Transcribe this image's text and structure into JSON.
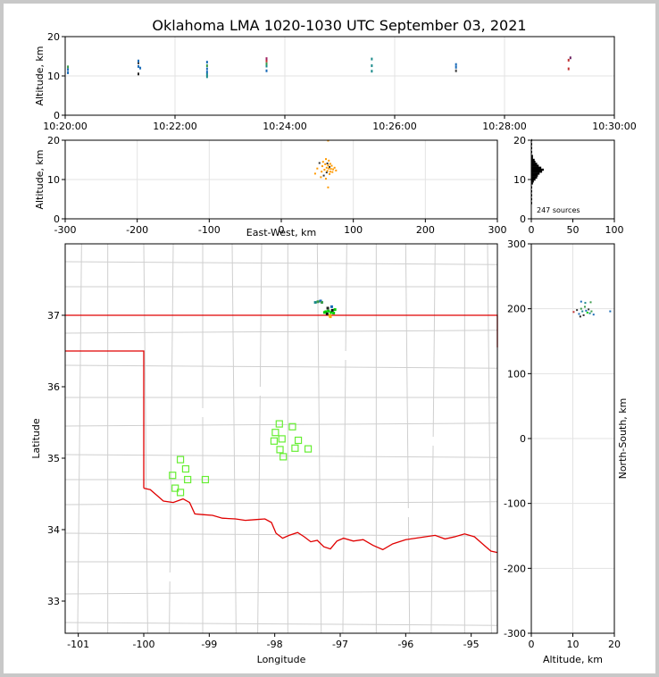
{
  "chart_data": [
    {
      "id": "time_altitude",
      "type": "scatter",
      "title": "Oklahoma LMA 1020-1030 UTC September 03, 2021",
      "xlabel": "",
      "ylabel": "Altitude, km",
      "xlim": [
        "10:20:00",
        "10:30:00"
      ],
      "ylim": [
        0,
        20
      ],
      "xticks": [
        "10:20:00",
        "10:22:00",
        "10:24:00",
        "10:26:00",
        "10:28:00",
        "10:30:00"
      ],
      "yticks": [
        0,
        10,
        20
      ],
      "grid": true,
      "points": [
        {
          "t": "10:20:03",
          "alt": 10.8,
          "color": "#1a6bb8"
        },
        {
          "t": "10:20:03",
          "alt": 11.6,
          "color": "#1a6bb8"
        },
        {
          "t": "10:20:03",
          "alt": 12.3,
          "color": "#3a9a4a"
        },
        {
          "t": "10:21:20",
          "alt": 10.5,
          "color": "#222222"
        },
        {
          "t": "10:21:20",
          "alt": 12.4,
          "color": "#1a6bb8"
        },
        {
          "t": "10:21:20",
          "alt": 13.3,
          "color": "#444444"
        },
        {
          "t": "10:21:20",
          "alt": 13.8,
          "color": "#1a6bb8"
        },
        {
          "t": "10:21:22",
          "alt": 12.0,
          "color": "#1a6bb8"
        },
        {
          "t": "10:22:35",
          "alt": 9.8,
          "color": "#1a8a8a"
        },
        {
          "t": "10:22:35",
          "alt": 10.4,
          "color": "#1a8a8a"
        },
        {
          "t": "10:22:35",
          "alt": 11.0,
          "color": "#1a6bb8"
        },
        {
          "t": "10:22:35",
          "alt": 11.8,
          "color": "#1a6bb8"
        },
        {
          "t": "10:22:35",
          "alt": 12.6,
          "color": "#3a9a4a"
        },
        {
          "t": "10:22:35",
          "alt": 13.5,
          "color": "#1a6bb8"
        },
        {
          "t": "10:23:40",
          "alt": 11.3,
          "color": "#1a6bb8"
        },
        {
          "t": "10:23:40",
          "alt": 12.5,
          "color": "#1a8a8a"
        },
        {
          "t": "10:23:40",
          "alt": 13.1,
          "color": "#3a9a4a"
        },
        {
          "t": "10:23:40",
          "alt": 13.8,
          "color": "#c03030"
        },
        {
          "t": "10:23:40",
          "alt": 14.4,
          "color": "#a02060"
        },
        {
          "t": "10:25:35",
          "alt": 11.2,
          "color": "#1a8a8a"
        },
        {
          "t": "10:25:35",
          "alt": 12.6,
          "color": "#1a8a8a"
        },
        {
          "t": "10:25:35",
          "alt": 14.3,
          "color": "#1a8a8a"
        },
        {
          "t": "10:27:07",
          "alt": 11.3,
          "color": "#444444"
        },
        {
          "t": "10:27:07",
          "alt": 12.2,
          "color": "#1a6bb8"
        },
        {
          "t": "10:27:07",
          "alt": 12.9,
          "color": "#1a6bb8"
        },
        {
          "t": "10:29:10",
          "alt": 11.8,
          "color": "#c03030"
        },
        {
          "t": "10:29:10",
          "alt": 14.0,
          "color": "#c03030"
        },
        {
          "t": "10:29:12",
          "alt": 14.6,
          "color": "#6a2060"
        }
      ]
    },
    {
      "id": "ew_altitude",
      "type": "scatter",
      "title": "",
      "xlabel": "East-West, km",
      "ylabel": "Altitude, km",
      "xlim": [
        -300,
        300
      ],
      "ylim": [
        0,
        20
      ],
      "xticks": [
        -300,
        -200,
        -100,
        0,
        100,
        200,
        300
      ],
      "yticks": [
        0,
        10,
        20
      ],
      "grid": true,
      "points": [
        {
          "x": 47,
          "alt": 11.5,
          "color": "#ff9900"
        },
        {
          "x": 50,
          "alt": 12.8,
          "color": "#ff9900"
        },
        {
          "x": 53,
          "alt": 14.2,
          "color": "#333333"
        },
        {
          "x": 55,
          "alt": 10.6,
          "color": "#ff9900"
        },
        {
          "x": 56,
          "alt": 12.0,
          "color": "#ff9900"
        },
        {
          "x": 57,
          "alt": 13.4,
          "color": "#ff9900"
        },
        {
          "x": 58,
          "alt": 14.5,
          "color": "#ff9900"
        },
        {
          "x": 59,
          "alt": 11.0,
          "color": "#333333"
        },
        {
          "x": 60,
          "alt": 12.5,
          "color": "#ff9900"
        },
        {
          "x": 61,
          "alt": 13.9,
          "color": "#ff9900"
        },
        {
          "x": 62,
          "alt": 15.2,
          "color": "#ff9900"
        },
        {
          "x": 62,
          "alt": 10.2,
          "color": "#ff9900"
        },
        {
          "x": 63,
          "alt": 11.8,
          "color": "#333333"
        },
        {
          "x": 63,
          "alt": 13.0,
          "color": "#ff9900"
        },
        {
          "x": 64,
          "alt": 14.1,
          "color": "#333333"
        },
        {
          "x": 64,
          "alt": 12.2,
          "color": "#ff9900"
        },
        {
          "x": 65,
          "alt": 13.6,
          "color": "#ff9900"
        },
        {
          "x": 65,
          "alt": 8.0,
          "color": "#ff9900"
        },
        {
          "x": 66,
          "alt": 12.8,
          "color": "#ff9900"
        },
        {
          "x": 66,
          "alt": 14.8,
          "color": "#ff9900"
        },
        {
          "x": 67,
          "alt": 11.4,
          "color": "#ff9900"
        },
        {
          "x": 67,
          "alt": 13.2,
          "color": "#333333"
        },
        {
          "x": 68,
          "alt": 12.0,
          "color": "#ff9900"
        },
        {
          "x": 68,
          "alt": 14.0,
          "color": "#ff9900"
        },
        {
          "x": 69,
          "alt": 12.7,
          "color": "#ff9900"
        },
        {
          "x": 70,
          "alt": 13.5,
          "color": "#ff9900"
        },
        {
          "x": 71,
          "alt": 11.9,
          "color": "#ff9900"
        },
        {
          "x": 72,
          "alt": 12.6,
          "color": "#ff9900"
        },
        {
          "x": 74,
          "alt": 13.0,
          "color": "#ff9900"
        },
        {
          "x": 76,
          "alt": 12.3,
          "color": "#ff9900"
        },
        {
          "x": 65,
          "alt": 19.9,
          "color": "#ff9900"
        }
      ]
    },
    {
      "id": "altitude_histogram",
      "type": "bar",
      "title": "",
      "xlabel": "",
      "ylabel": "",
      "xlim": [
        0,
        100
      ],
      "ylim": [
        0,
        20
      ],
      "xticks": [
        0,
        50,
        100
      ],
      "yticks": [
        0,
        10,
        20
      ],
      "annotation": "247 sources",
      "bins": [
        {
          "alt": 4,
          "count": 1
        },
        {
          "alt": 5,
          "count": 1
        },
        {
          "alt": 6,
          "count": 1
        },
        {
          "alt": 7,
          "count": 1
        },
        {
          "alt": 8,
          "count": 1
        },
        {
          "alt": 9,
          "count": 2
        },
        {
          "alt": 9.5,
          "count": 3
        },
        {
          "alt": 10,
          "count": 5
        },
        {
          "alt": 10.5,
          "count": 7
        },
        {
          "alt": 11,
          "count": 8
        },
        {
          "alt": 11.5,
          "count": 10
        },
        {
          "alt": 12,
          "count": 13
        },
        {
          "alt": 12.5,
          "count": 15
        },
        {
          "alt": 13,
          "count": 12
        },
        {
          "alt": 13.5,
          "count": 9
        },
        {
          "alt": 14,
          "count": 7
        },
        {
          "alt": 14.5,
          "count": 5
        },
        {
          "alt": 15,
          "count": 4
        },
        {
          "alt": 15.5,
          "count": 2
        },
        {
          "alt": 16,
          "count": 2
        },
        {
          "alt": 17,
          "count": 1
        },
        {
          "alt": 18,
          "count": 1
        },
        {
          "alt": 19,
          "count": 1
        },
        {
          "alt": 20,
          "count": 1
        }
      ]
    },
    {
      "id": "plan_view",
      "type": "scatter",
      "title": "",
      "xlabel": "Longitude",
      "ylabel": "Latitude",
      "xlim": [
        -101.2,
        -94.6
      ],
      "ylim": [
        32.55,
        38.0
      ],
      "xticks": [
        -101,
        -100,
        -99,
        -98,
        -97,
        -96,
        -95
      ],
      "yticks": [
        33,
        34,
        35,
        36,
        37
      ],
      "stations": [
        {
          "lon": -97.93,
          "lat": 35.48
        },
        {
          "lon": -97.73,
          "lat": 35.44
        },
        {
          "lon": -97.99,
          "lat": 35.36
        },
        {
          "lon": -97.89,
          "lat": 35.27
        },
        {
          "lon": -98.01,
          "lat": 35.24
        },
        {
          "lon": -97.64,
          "lat": 35.25
        },
        {
          "lon": -97.92,
          "lat": 35.12
        },
        {
          "lon": -97.69,
          "lat": 35.14
        },
        {
          "lon": -97.49,
          "lat": 35.13
        },
        {
          "lon": -97.87,
          "lat": 35.02
        },
        {
          "lon": -99.44,
          "lat": 34.98
        },
        {
          "lon": -99.36,
          "lat": 34.85
        },
        {
          "lon": -99.56,
          "lat": 34.76
        },
        {
          "lon": -99.33,
          "lat": 34.7
        },
        {
          "lon": -99.06,
          "lat": 34.7
        },
        {
          "lon": -99.52,
          "lat": 34.58
        },
        {
          "lon": -99.44,
          "lat": 34.52
        }
      ],
      "sources": [
        {
          "lon": -97.38,
          "lat": 37.18,
          "color": "#1a8a8a"
        },
        {
          "lon": -97.34,
          "lat": 37.19,
          "color": "#3a9a4a"
        },
        {
          "lon": -97.3,
          "lat": 37.2,
          "color": "#1a6bb8"
        },
        {
          "lon": -97.28,
          "lat": 37.18,
          "color": "#3a9a4a"
        },
        {
          "lon": -97.22,
          "lat": 37.05,
          "color": "#00cc00"
        },
        {
          "lon": -97.2,
          "lat": 37.02,
          "color": "#111111"
        },
        {
          "lon": -97.18,
          "lat": 37.06,
          "color": "#00cc00"
        },
        {
          "lon": -97.16,
          "lat": 37.0,
          "color": "#cccc00"
        },
        {
          "lon": -97.14,
          "lat": 37.04,
          "color": "#00cc00"
        },
        {
          "lon": -97.12,
          "lat": 37.07,
          "color": "#111111"
        },
        {
          "lon": -97.1,
          "lat": 37.03,
          "color": "#00cc00"
        },
        {
          "lon": -97.08,
          "lat": 37.08,
          "color": "#00cc00"
        },
        {
          "lon": -97.15,
          "lat": 36.98,
          "color": "#ffaa00"
        },
        {
          "lon": -97.24,
          "lat": 37.04,
          "color": "#00cc00"
        },
        {
          "lon": -97.13,
          "lat": 37.12,
          "color": "#1a6bb8"
        },
        {
          "lon": -97.19,
          "lat": 37.1,
          "color": "#222222"
        }
      ],
      "state_border": [
        [
          -101.2,
          37.0
        ],
        [
          -94.6,
          37.0
        ],
        [
          -94.6,
          36.55
        ]
      ],
      "panhandle_border": [
        [
          -101.2,
          36.5
        ],
        [
          -100.0,
          36.5
        ],
        [
          -100.0,
          34.58
        ]
      ],
      "red_river": [
        [
          -100.0,
          34.58
        ],
        [
          -99.9,
          34.56
        ],
        [
          -99.8,
          34.48
        ],
        [
          -99.7,
          34.4
        ],
        [
          -99.55,
          34.38
        ],
        [
          -99.4,
          34.43
        ],
        [
          -99.3,
          34.38
        ],
        [
          -99.22,
          34.22
        ],
        [
          -99.1,
          34.21
        ],
        [
          -98.95,
          34.2
        ],
        [
          -98.8,
          34.16
        ],
        [
          -98.6,
          34.15
        ],
        [
          -98.45,
          34.13
        ],
        [
          -98.3,
          34.14
        ],
        [
          -98.15,
          34.15
        ],
        [
          -98.05,
          34.1
        ],
        [
          -97.98,
          33.95
        ],
        [
          -97.88,
          33.88
        ],
        [
          -97.78,
          33.92
        ],
        [
          -97.65,
          33.96
        ],
        [
          -97.55,
          33.9
        ],
        [
          -97.45,
          33.83
        ],
        [
          -97.35,
          33.85
        ],
        [
          -97.25,
          33.76
        ],
        [
          -97.15,
          33.73
        ],
        [
          -97.05,
          33.84
        ],
        [
          -96.95,
          33.88
        ],
        [
          -96.8,
          33.84
        ],
        [
          -96.65,
          33.86
        ],
        [
          -96.5,
          33.78
        ],
        [
          -96.35,
          33.72
        ],
        [
          -96.2,
          33.8
        ],
        [
          -96.0,
          33.86
        ],
        [
          -95.85,
          33.88
        ],
        [
          -95.7,
          33.9
        ],
        [
          -95.55,
          33.92
        ],
        [
          -95.4,
          33.87
        ],
        [
          -95.25,
          33.9
        ],
        [
          -95.1,
          33.94
        ],
        [
          -94.95,
          33.9
        ],
        [
          -94.8,
          33.78
        ],
        [
          -94.7,
          33.7
        ],
        [
          -94.6,
          33.68
        ]
      ]
    },
    {
      "id": "altitude_ns",
      "type": "scatter",
      "title": "",
      "xlabel": "Altitude, km",
      "ylabel": "North-South, km",
      "xlim": [
        0,
        20
      ],
      "ylim": [
        -300,
        300
      ],
      "xticks": [
        0,
        10,
        20
      ],
      "yticks": [
        -300,
        -200,
        -100,
        0,
        100,
        200,
        300
      ],
      "grid": true,
      "points": [
        {
          "alt": 10.2,
          "y": 195,
          "color": "#c03030"
        },
        {
          "alt": 11.0,
          "y": 198,
          "color": "#333333"
        },
        {
          "alt": 11.5,
          "y": 192,
          "color": "#1a6bb8"
        },
        {
          "alt": 12.0,
          "y": 200,
          "color": "#3a9a4a"
        },
        {
          "alt": 12.3,
          "y": 196,
          "color": "#1a8a8a"
        },
        {
          "alt": 12.6,
          "y": 190,
          "color": "#333333"
        },
        {
          "alt": 12.9,
          "y": 203,
          "color": "#3a9a4a"
        },
        {
          "alt": 13.2,
          "y": 197,
          "color": "#1a6bb8"
        },
        {
          "alt": 13.5,
          "y": 194,
          "color": "#00cc00"
        },
        {
          "alt": 13.8,
          "y": 199,
          "color": "#333333"
        },
        {
          "alt": 14.1,
          "y": 193,
          "color": "#1a8a8a"
        },
        {
          "alt": 14.5,
          "y": 196,
          "color": "#3a9a4a"
        },
        {
          "alt": 15.0,
          "y": 191,
          "color": "#1a6bb8"
        },
        {
          "alt": 12.0,
          "y": 211,
          "color": "#1a6bb8"
        },
        {
          "alt": 13.0,
          "y": 209,
          "color": "#1a8a8a"
        },
        {
          "alt": 14.3,
          "y": 210,
          "color": "#3a9a4a"
        },
        {
          "alt": 11.8,
          "y": 188,
          "color": "#222222"
        },
        {
          "alt": 19.0,
          "y": 196,
          "color": "#1a6bb8"
        }
      ]
    }
  ]
}
